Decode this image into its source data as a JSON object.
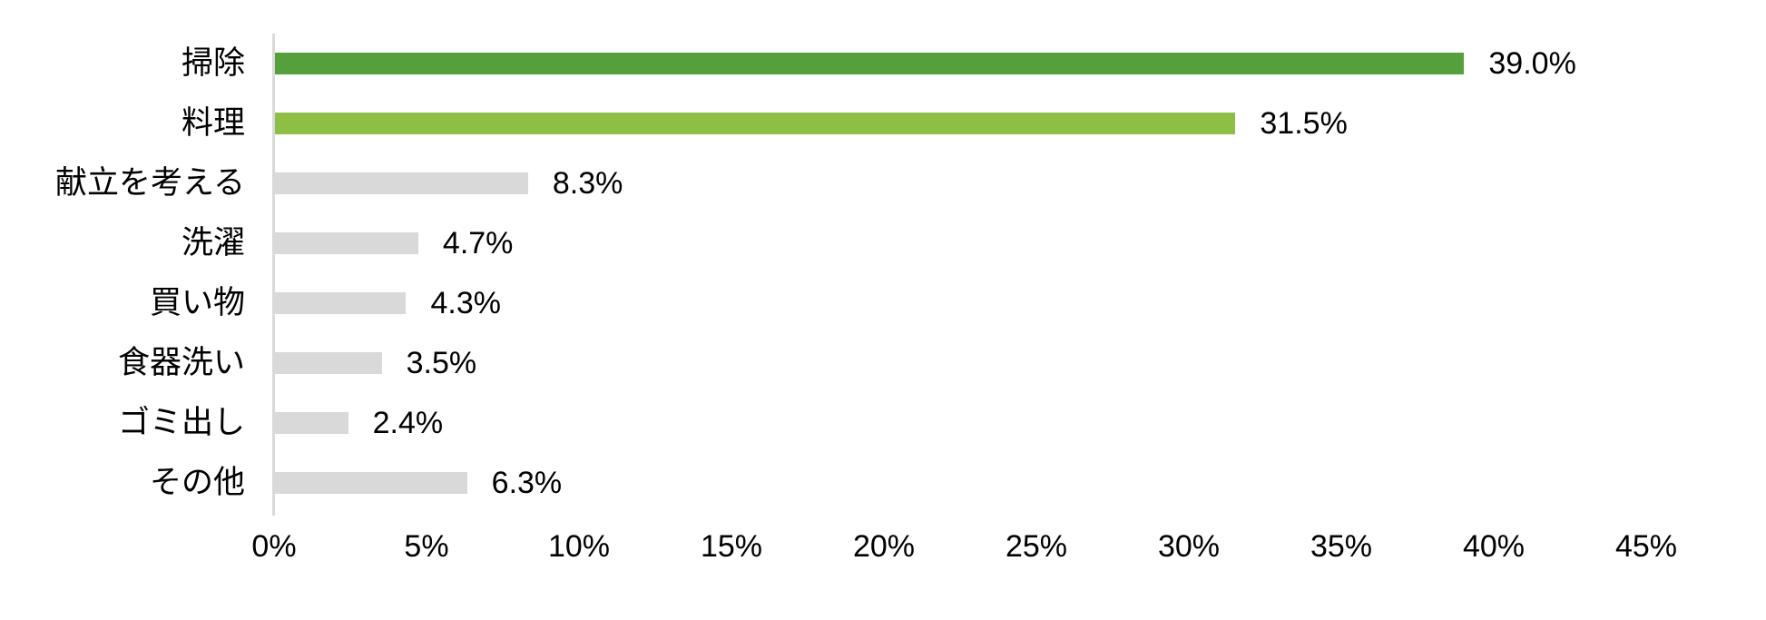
{
  "chart_data": {
    "type": "bar",
    "orientation": "horizontal",
    "title": "",
    "xlabel": "",
    "ylabel": "",
    "categories": [
      "掃除",
      "料理",
      "献立を考える",
      "洗濯",
      "買い物",
      "食器洗い",
      "ゴミ出し",
      "その他"
    ],
    "values": [
      39.0,
      31.5,
      8.3,
      4.7,
      4.3,
      3.5,
      2.4,
      6.3
    ],
    "data_labels": [
      "39.0%",
      "31.5%",
      "8.3%",
      "4.7%",
      "4.3%",
      "3.5%",
      "2.4%",
      "6.3%"
    ],
    "bar_colors": [
      "#569f3d",
      "#8dbf45",
      "#d9d9d9",
      "#d9d9d9",
      "#d9d9d9",
      "#d9d9d9",
      "#d9d9d9",
      "#d9d9d9"
    ],
    "xlim": [
      0,
      45
    ],
    "x_ticks": [
      "0%",
      "5%",
      "10%",
      "15%",
      "20%",
      "25%",
      "30%",
      "35%",
      "40%",
      "45%"
    ],
    "grid": false,
    "legend": null,
    "colors": {
      "accent_dark_green": "#569f3d",
      "accent_light_green": "#8dbf45",
      "bar_gray": "#d9d9d9",
      "axis_line": "#d9d9d9",
      "text": "#000000",
      "background": "#ffffff"
    }
  }
}
